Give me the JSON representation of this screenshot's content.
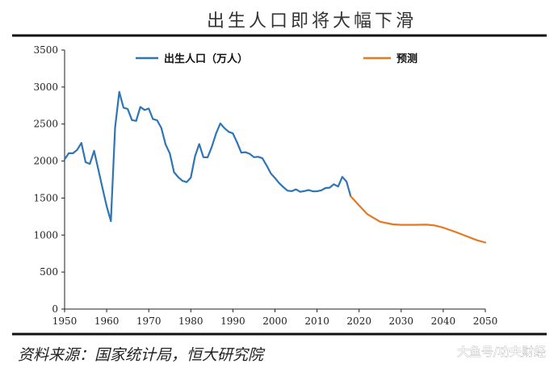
{
  "chart_data": {
    "type": "line",
    "title": "出生人口即将大幅下滑",
    "xlabel": "",
    "ylabel": "",
    "xlim": [
      1950,
      2050
    ],
    "ylim": [
      0,
      3500
    ],
    "x_ticks": [
      "1950",
      "1960",
      "1970",
      "1980",
      "1990",
      "2000",
      "2010",
      "2020",
      "2030",
      "2040",
      "2050"
    ],
    "y_ticks": [
      "0",
      "500",
      "1000",
      "1500",
      "2000",
      "2500",
      "3000",
      "3500"
    ],
    "grid": false,
    "legend_position": "top",
    "series": [
      {
        "name": "出生人口（万人）",
        "color": "#2E75B6",
        "x": [
          1950,
          1951,
          1952,
          1953,
          1954,
          1955,
          1956,
          1957,
          1958,
          1959,
          1960,
          1961,
          1962,
          1963,
          1964,
          1965,
          1966,
          1967,
          1968,
          1969,
          1970,
          1971,
          1972,
          1973,
          1974,
          1975,
          1976,
          1977,
          1978,
          1979,
          1980,
          1981,
          1982,
          1983,
          1984,
          1985,
          1986,
          1987,
          1988,
          1989,
          1990,
          1991,
          1992,
          1993,
          1994,
          1995,
          1996,
          1997,
          1998,
          1999,
          2000,
          2001,
          2002,
          2003,
          2004,
          2005,
          2006,
          2007,
          2008,
          2009,
          2010,
          2011,
          2012,
          2013,
          2014,
          2015,
          2016,
          2017,
          2018
        ],
        "values": [
          2023,
          2107,
          2105,
          2151,
          2245,
          1984,
          1961,
          2138,
          1889,
          1635,
          1389,
          1187,
          2451,
          2934,
          2721,
          2704,
          2554,
          2543,
          2731,
          2690,
          2710,
          2567,
          2550,
          2447,
          2226,
          2102,
          1849,
          1783,
          1733,
          1715,
          1776,
          2064,
          2230,
          2052,
          2050,
          2196,
          2374,
          2508,
          2445,
          2396,
          2374,
          2250,
          2113,
          2120,
          2098,
          2052,
          2057,
          2038,
          1942,
          1834,
          1771,
          1702,
          1647,
          1599,
          1593,
          1617,
          1584,
          1594,
          1608,
          1591,
          1592,
          1604,
          1635,
          1640,
          1687,
          1655,
          1786,
          1723,
          1523
        ]
      },
      {
        "name": "预测",
        "color": "#E87722",
        "x": [
          2018,
          2020,
          2022,
          2025,
          2028,
          2030,
          2033,
          2036,
          2038,
          2040,
          2043,
          2046,
          2048,
          2050
        ],
        "values": [
          1523,
          1400,
          1280,
          1180,
          1145,
          1138,
          1138,
          1140,
          1130,
          1100,
          1040,
          975,
          930,
          900
        ]
      }
    ],
    "source_note": "资料来源：国家统计局，恒大研究院",
    "watermark": "大鱼号/功夫财经"
  }
}
